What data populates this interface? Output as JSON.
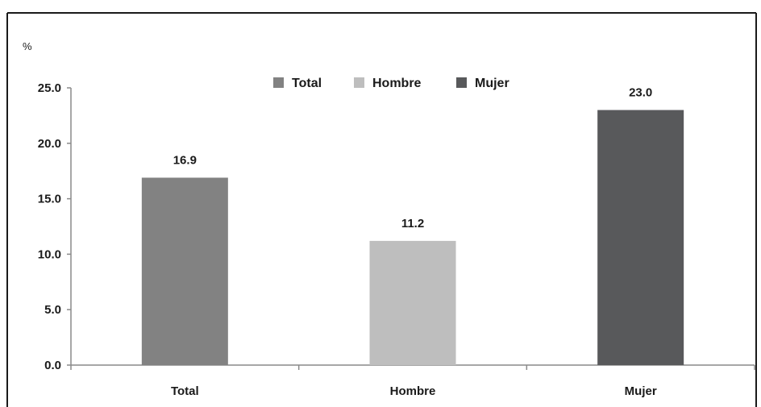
{
  "chart_data": {
    "type": "bar",
    "title": "",
    "unit_label": "%",
    "xlabel": "",
    "ylabel": "",
    "ylim": [
      0,
      25
    ],
    "y_ticks": [
      0,
      5,
      10,
      15,
      20,
      25
    ],
    "y_tick_labels": [
      "0.0",
      "5.0",
      "10.0",
      "15.0",
      "20.0",
      "25.0"
    ],
    "categories": [
      "Total",
      "Hombre",
      "Mujer"
    ],
    "values": [
      16.9,
      11.2,
      23.0
    ],
    "data_labels": [
      "16.9",
      "11.2",
      "23.0"
    ],
    "colors": [
      "#828282",
      "#bebebe",
      "#58595b"
    ],
    "grid": false,
    "legend": {
      "placement": "top-center",
      "entries": [
        "Total",
        "Hombre",
        "Mujer"
      ]
    }
  }
}
